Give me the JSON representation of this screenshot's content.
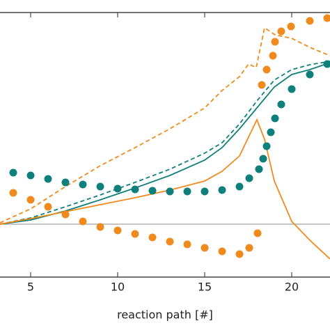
{
  "chart_data": {
    "type": "line",
    "xlabel": "reaction path [#]",
    "xlim": [
      3.24,
      22.2
    ],
    "ylim": [
      -0.76,
      3.04
    ],
    "xticks": [
      5,
      10,
      15,
      20
    ],
    "hline": 0,
    "series": [
      {
        "style": "solid",
        "color": "#0e7f7a",
        "x": [
          3.24,
          5,
          7,
          9,
          11,
          13,
          15,
          16,
          17,
          18,
          19,
          20,
          21.04,
          22.2
        ],
        "values": [
          0,
          0.06,
          0.19,
          0.35,
          0.52,
          0.7,
          0.92,
          1.1,
          1.37,
          1.67,
          1.97,
          2.15,
          2.22,
          2.32
        ]
      },
      {
        "style": "dashed",
        "color": "#0e7f7a",
        "x": [
          3.24,
          5,
          7,
          9,
          11,
          13,
          15,
          16,
          17,
          18,
          19,
          20,
          21.04,
          22.2
        ],
        "values": [
          0,
          0.09,
          0.25,
          0.42,
          0.6,
          0.79,
          1.02,
          1.17,
          1.44,
          1.77,
          2.07,
          2.22,
          2.29,
          2.34
        ]
      },
      {
        "style": "solid",
        "color": "#f08a1c",
        "x": [
          3.24,
          5,
          7,
          9,
          11,
          13,
          15,
          16,
          17,
          18,
          18.44,
          19,
          20,
          21.04,
          22.2
        ],
        "values": [
          0,
          0.08,
          0.18,
          0.28,
          0.38,
          0.49,
          0.62,
          0.76,
          0.98,
          1.5,
          1.22,
          0.62,
          0.04,
          -0.23,
          -0.5
        ]
      },
      {
        "style": "dashed",
        "color": "#f08a1c",
        "x": [
          3.24,
          5,
          7,
          9,
          11,
          13,
          15,
          16,
          17,
          17.52,
          17.96,
          18.44,
          19.04,
          20,
          21.04,
          22.2
        ],
        "values": [
          0.02,
          0.22,
          0.54,
          0.84,
          1.1,
          1.37,
          1.67,
          1.92,
          2.12,
          2.3,
          2.25,
          2.82,
          2.72,
          2.67,
          2.54,
          2.42
        ]
      },
      {
        "style": "dots",
        "color": "#0e7f7a",
        "x": [
          4,
          5,
          6,
          7,
          8,
          9,
          10,
          11,
          12,
          13,
          14,
          15,
          16,
          17,
          17.56,
          18.12,
          18.36,
          18.56,
          18.8,
          19.04,
          19.4,
          20,
          21.04,
          22.04
        ],
        "values": [
          0.74,
          0.7,
          0.65,
          0.6,
          0.57,
          0.54,
          0.51,
          0.5,
          0.48,
          0.47,
          0.47,
          0.47,
          0.49,
          0.54,
          0.66,
          0.79,
          0.94,
          1.12,
          1.32,
          1.52,
          1.72,
          1.94,
          2.15,
          2.3
        ]
      },
      {
        "style": "dots",
        "color": "#f08a1c",
        "x": [
          4,
          5,
          6,
          7,
          8,
          9,
          10,
          11,
          12,
          13,
          14,
          15,
          16,
          17,
          17.56,
          18.04,
          18.28,
          18.56,
          18.92,
          19.04,
          19.4,
          19.96,
          21.04,
          22.04
        ],
        "values": [
          0.45,
          0.35,
          0.25,
          0.14,
          0.04,
          -0.04,
          -0.09,
          -0.14,
          -0.19,
          -0.25,
          -0.29,
          -0.34,
          -0.39,
          -0.43,
          -0.34,
          -0.13,
          2.0,
          2.22,
          2.42,
          2.62,
          2.77,
          2.84,
          2.92,
          2.96
        ]
      }
    ]
  }
}
